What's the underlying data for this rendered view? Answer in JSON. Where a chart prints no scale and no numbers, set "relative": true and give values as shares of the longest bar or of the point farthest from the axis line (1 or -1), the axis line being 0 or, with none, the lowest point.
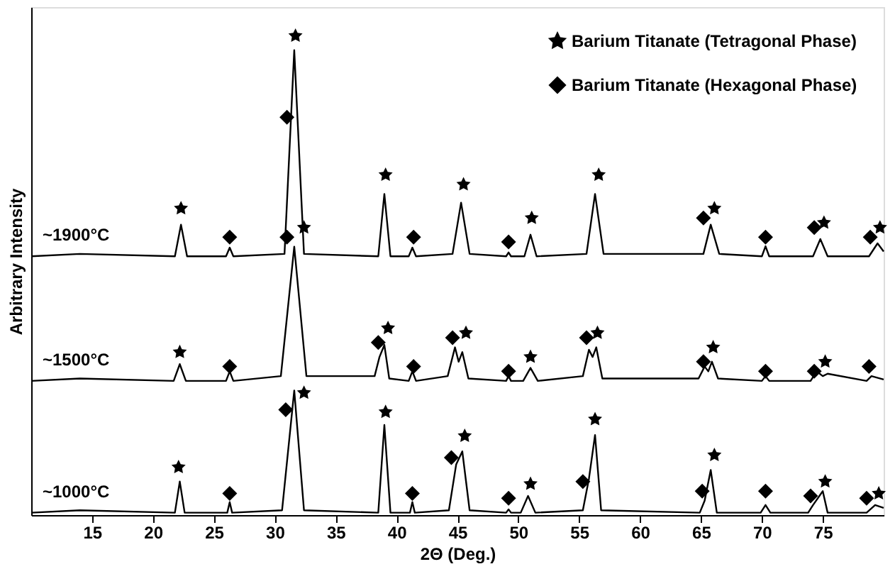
{
  "chart_data": {
    "type": "line",
    "relative": true,
    "xlabel": "2Θ (Deg.)",
    "ylabel": "Arbitrary Intensity",
    "xlim": [
      10,
      80
    ],
    "xticks": [
      15,
      20,
      25,
      30,
      35,
      40,
      45,
      50,
      55,
      60,
      65,
      70,
      75
    ],
    "grid": false,
    "legend": "top right",
    "line_style": "solid",
    "marker": "none",
    "series": [
      {
        "name": "~1900°C",
        "color": "#000000",
        "x": [
          10,
          14,
          21.8,
          22.3,
          22.8,
          26,
          26.3,
          26.6,
          30.8,
          31.6,
          32.4,
          38.5,
          39.0,
          39.5,
          41,
          41.3,
          41.6,
          44.6,
          45.3,
          46,
          49,
          49.2,
          49.4,
          50.5,
          51,
          51.5,
          55.6,
          56.3,
          57,
          65.2,
          65.8,
          66.5,
          70,
          70.3,
          70.6,
          74.2,
          74.8,
          75.4,
          78.8,
          79.5,
          80
        ],
        "values": [
          0.54,
          0.545,
          0.54,
          0.606,
          0.54,
          0.54,
          0.558,
          0.54,
          0.545,
          0.97,
          0.545,
          0.54,
          0.67,
          0.54,
          0.54,
          0.558,
          0.54,
          0.545,
          0.652,
          0.545,
          0.54,
          0.548,
          0.54,
          0.54,
          0.585,
          0.54,
          0.545,
          0.67,
          0.545,
          0.545,
          0.606,
          0.545,
          0.54,
          0.561,
          0.54,
          0.54,
          0.576,
          0.54,
          0.54,
          0.567,
          0.55
        ]
      },
      {
        "name": "~1500°C",
        "color": "#000000",
        "x": [
          10,
          14,
          21.7,
          22.2,
          22.7,
          26,
          26.3,
          26.6,
          30.5,
          31.6,
          32.6,
          38.2,
          38.6,
          39.0,
          39.4,
          41,
          41.3,
          41.6,
          44.2,
          44.8,
          45.1,
          45.4,
          45.9,
          49,
          49.2,
          49.4,
          50.4,
          51,
          51.6,
          55.3,
          55.8,
          56.1,
          56.4,
          56.9,
          64.8,
          65.3,
          65.6,
          65.9,
          66.4,
          70,
          70.3,
          70.6,
          74,
          74.5,
          75,
          75.4,
          78.6,
          79,
          80
        ],
        "values": [
          0.28,
          0.285,
          0.28,
          0.315,
          0.28,
          0.28,
          0.3,
          0.28,
          0.29,
          0.56,
          0.29,
          0.29,
          0.33,
          0.355,
          0.285,
          0.28,
          0.3,
          0.28,
          0.29,
          0.35,
          0.32,
          0.34,
          0.285,
          0.28,
          0.29,
          0.28,
          0.28,
          0.307,
          0.28,
          0.29,
          0.345,
          0.33,
          0.35,
          0.285,
          0.285,
          0.31,
          0.3,
          0.32,
          0.285,
          0.28,
          0.29,
          0.28,
          0.28,
          0.3,
          0.29,
          0.295,
          0.28,
          0.29,
          0.283
        ]
      },
      {
        "name": "~1000°C",
        "color": "#000000",
        "x": [
          10,
          14,
          21.8,
          22.2,
          22.6,
          26.1,
          26.3,
          26.5,
          30.6,
          31.6,
          32.4,
          38.5,
          39.0,
          39.5,
          41.1,
          41.3,
          41.5,
          44.3,
          44.9,
          45.4,
          46,
          49,
          49.2,
          49.4,
          50.2,
          50.8,
          51.4,
          55.3,
          55.8,
          56.3,
          56.8,
          64.9,
          65.3,
          65.8,
          66.3,
          69.9,
          70.3,
          70.7,
          73.8,
          74.2,
          75,
          75.4,
          78.6,
          79.3,
          80
        ],
        "values": [
          0.005,
          0.01,
          0.005,
          0.07,
          0.005,
          0.005,
          0.027,
          0.005,
          0.01,
          0.26,
          0.01,
          0.005,
          0.188,
          0.005,
          0.005,
          0.027,
          0.005,
          0.01,
          0.106,
          0.133,
          0.01,
          0.005,
          0.012,
          0.005,
          0.005,
          0.04,
          0.005,
          0.01,
          0.076,
          0.167,
          0.01,
          0.005,
          0.03,
          0.094,
          0.005,
          0.005,
          0.021,
          0.005,
          0.005,
          0.021,
          0.05,
          0.005,
          0.005,
          0.021,
          0.015
        ]
      },
      {
        "name": "Barium Titanate (Tetragonal Phase)",
        "type": "scatter",
        "marker": "star",
        "color": "#000000",
        "x": [
          22.3,
          31.7,
          39.1,
          45.5,
          51.1,
          56.6,
          66.1,
          75.1,
          79.7,
          22.2,
          32.4,
          39.3,
          45.7,
          51.0,
          56.5,
          66.0,
          75.2,
          22.1,
          32.4,
          39.1,
          45.6,
          51.0,
          56.3,
          66.1,
          75.2,
          79.6
        ],
        "values": [
          0.64,
          1.0,
          0.71,
          0.69,
          0.62,
          0.71,
          0.64,
          0.61,
          0.6,
          0.34,
          0.6,
          0.39,
          0.38,
          0.33,
          0.38,
          0.35,
          0.32,
          0.1,
          0.255,
          0.215,
          0.165,
          0.065,
          0.2,
          0.125,
          0.07,
          0.045
        ]
      },
      {
        "name": "Barium Titanate (Hexagonal Phase)",
        "type": "scatter",
        "marker": "diamond",
        "color": "#000000",
        "x": [
          26.3,
          31.0,
          41.4,
          49.2,
          65.2,
          70.3,
          74.3,
          78.9,
          26.3,
          31.0,
          38.5,
          41.4,
          44.6,
          49.2,
          55.6,
          65.2,
          70.3,
          74.3,
          78.8,
          26.3,
          30.9,
          41.3,
          44.5,
          49.2,
          55.3,
          65.1,
          70.3,
          74.0,
          78.6
        ],
        "values": [
          0.58,
          0.83,
          0.58,
          0.57,
          0.62,
          0.58,
          0.6,
          0.58,
          0.31,
          0.58,
          0.36,
          0.31,
          0.37,
          0.3,
          0.37,
          0.32,
          0.3,
          0.3,
          0.31,
          0.045,
          0.22,
          0.045,
          0.12,
          0.035,
          0.07,
          0.05,
          0.05,
          0.04,
          0.035
        ]
      }
    ]
  }
}
